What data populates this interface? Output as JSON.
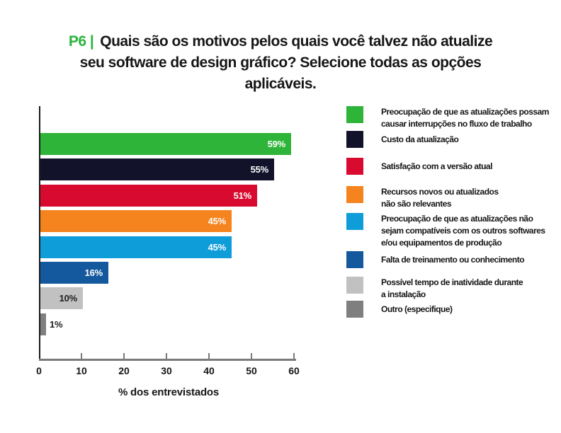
{
  "title": {
    "prefix": "P6 |",
    "line1_rest": "Quais são os motivos pelos quais você talvez não atualize",
    "line2": "seu software de design gráfico? Selecione todas as opções",
    "line3": "aplicáveis.",
    "prefix_color": "#2bb33d"
  },
  "chart_data": {
    "type": "bar",
    "orientation": "horizontal",
    "title": "P6 | Quais são os motivos pelos quais você talvez não atualize seu software de design gráfico? Selecione todas as opções aplicáveis.",
    "xlabel": "% dos entrevistados",
    "xlim": [
      0,
      60
    ],
    "xticks": [
      0,
      10,
      20,
      30,
      40,
      50,
      60
    ],
    "grid": false,
    "legend_position": "right",
    "categories": [
      "Preocupação de que as atualizações possam causar interrupções no fluxo de trabalho",
      "Custo da atualização",
      "Satisfação com a versão atual",
      "Recursos novos ou atualizados não são relevantes",
      "Preocupação de que as atualizações não sejam compatíveis com os outros softwares e/ou equipamentos de produção",
      "Falta de treinamento ou conhecimento",
      "Possível tempo de inatividade durante a instalação",
      "Outro (especifique)"
    ],
    "values": [
      59,
      55,
      51,
      45,
      45,
      16,
      10,
      1
    ],
    "bar_colors": [
      "#2eb438",
      "#13122b",
      "#d90a30",
      "#f5831e",
      "#0f9dd9",
      "#14599d",
      "#c1c1c1",
      "#7f7f7f"
    ],
    "value_labels": [
      "59%",
      "55%",
      "51%",
      "45%",
      "45%",
      "16%",
      "10%",
      "1%"
    ],
    "value_label_colors": [
      "#ffffff",
      "#ffffff",
      "#ffffff",
      "#ffffff",
      "#ffffff",
      "#ffffff",
      "#1d1d1d",
      "#1d1d1d"
    ],
    "value_label_positions": [
      "inside",
      "inside",
      "inside",
      "inside",
      "inside",
      "inside",
      "inside",
      "outside"
    ],
    "axis_line_color": "#7a7a7a"
  },
  "legend": {
    "items": [
      {
        "color": "#2eb438",
        "lines": [
          "Preocupação de que as atualizações possam",
          "causar interrupções no fluxo de trabalho"
        ]
      },
      {
        "color": "#13122b",
        "lines": [
          "Custo da atualização"
        ]
      },
      {
        "color": "#d90a30",
        "lines": [
          "Satisfação com a versão atual"
        ]
      },
      {
        "color": "#f5831e",
        "lines": [
          "Recursos novos ou atualizados",
          "não são relevantes"
        ]
      },
      {
        "color": "#0f9dd9",
        "lines": [
          "Preocupação de que as atualizações não",
          "sejam compatíveis com os outros softwares",
          "e/ou equipamentos de produção"
        ]
      },
      {
        "color": "#14599d",
        "lines": [
          "Falta de treinamento ou conhecimento"
        ]
      },
      {
        "color": "#c1c1c1",
        "lines": [
          "Possível tempo de inatividade durante",
          "a instalação"
        ]
      },
      {
        "color": "#7f7f7f",
        "lines": [
          "Outro (especifique)"
        ]
      }
    ]
  }
}
